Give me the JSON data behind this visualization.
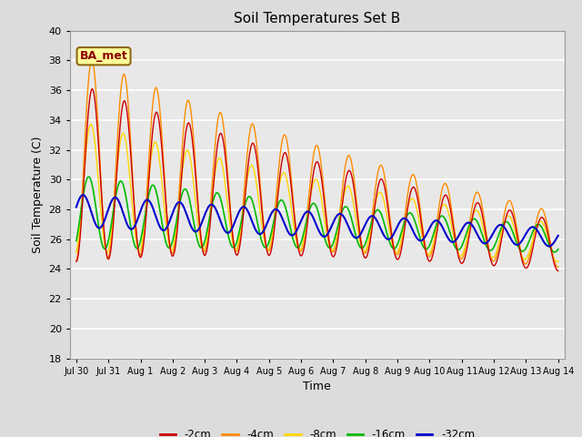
{
  "title": "Soil Temperatures Set B",
  "xlabel": "Time",
  "ylabel": "Soil Temperature (C)",
  "ylim": [
    18,
    40
  ],
  "annotation_text": "BA_met",
  "annotation_color": "#8B0000",
  "annotation_bg": "#FFFF99",
  "xtick_labels": [
    "Jul 30",
    "Jul 31",
    "Aug 1",
    "Aug 2",
    "Aug 3",
    "Aug 4",
    "Aug 5",
    "Aug 6",
    "Aug 7",
    "Aug 8",
    "Aug 9",
    "Aug 10",
    "Aug 11",
    "Aug 12",
    "Aug 13",
    "Aug 14"
  ],
  "legend_entries": [
    "-2cm",
    "-4cm",
    "-8cm",
    "-16cm",
    "-32cm"
  ],
  "legend_colors": [
    "#CC0000",
    "#FF8C00",
    "#FFD700",
    "#00BB00",
    "#0000CC"
  ],
  "line_colors": {
    "2cm": "#CC0000",
    "4cm": "#FF8C00",
    "8cm": "#FFD700",
    "16cm": "#00BB00",
    "32cm": "#0000CC"
  },
  "fig_bg": "#DCDCDC",
  "ax_bg": "#E8E8E8",
  "title_fontsize": 11,
  "yticks": [
    18,
    20,
    22,
    24,
    26,
    28,
    30,
    32,
    34,
    36,
    38,
    40
  ]
}
